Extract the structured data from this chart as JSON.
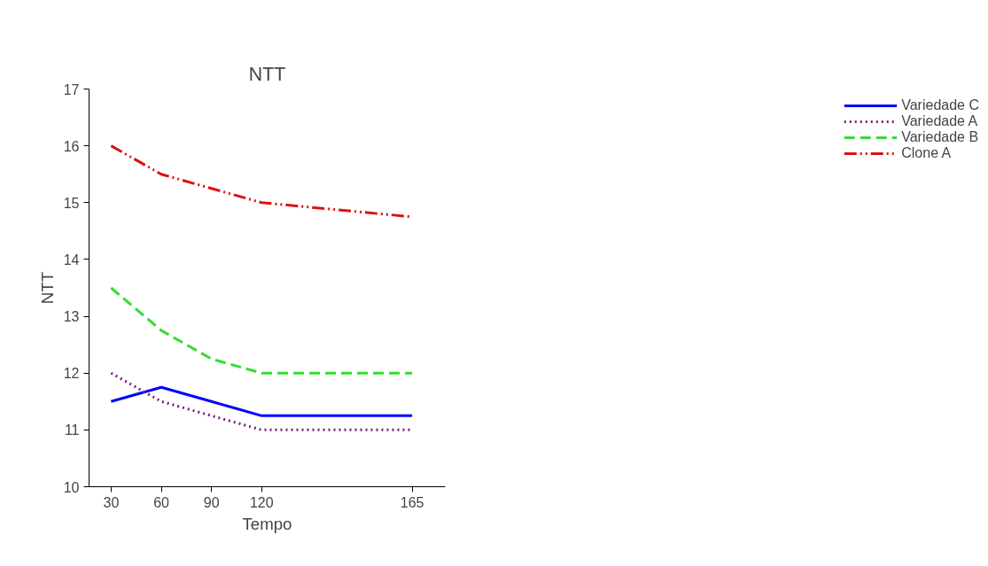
{
  "chart_data": {
    "type": "line",
    "title": "NTT",
    "xlabel": "Tempo",
    "ylabel": "NTT",
    "categories": [
      "30",
      "60",
      "90",
      "120",
      null,
      null,
      "165"
    ],
    "ylim": [
      10,
      17
    ],
    "yticks": [
      10,
      11,
      12,
      13,
      14,
      15,
      16,
      17
    ],
    "grid": false,
    "legend": "right",
    "marker": "none",
    "series": [
      {
        "name": "Variedade C",
        "color": "#0000ff",
        "line_style": "solid",
        "values": [
          11.5,
          11.75,
          11.5,
          11.25,
          null,
          null,
          11.25
        ]
      },
      {
        "name": "Variedade A",
        "color": "#7a1f7a",
        "line_style": "dotted",
        "values": [
          12,
          11.5,
          11.25,
          11,
          null,
          null,
          11
        ]
      },
      {
        "name": "Variedade B",
        "color": "#33dd33",
        "line_style": "dashed",
        "values": [
          13.5,
          12.75,
          12.25,
          12,
          null,
          null,
          12
        ]
      },
      {
        "name": "Clone A",
        "color": "#dd1111",
        "line_style": "dashdot",
        "values": [
          16,
          15.5,
          15.25,
          15,
          null,
          null,
          14.75
        ]
      }
    ]
  }
}
